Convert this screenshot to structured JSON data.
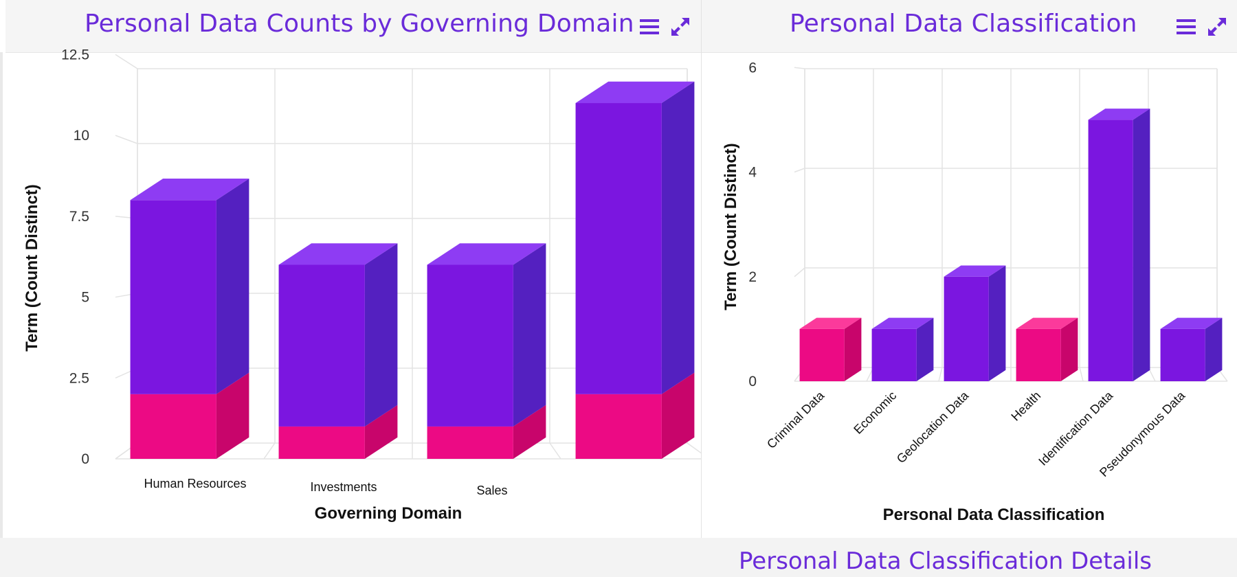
{
  "colors": {
    "accent": "#6a2bd9",
    "pink_front": "#ec0a84",
    "pink_side": "#c8056b",
    "pink_top": "#fb3a9b",
    "purple_front": "#7b16e0",
    "purple_side": "#5420c0",
    "purple_top": "#8e3cf3"
  },
  "icons": {
    "menu": "hamburger-menu-icon",
    "expand": "expand-arrows-icon"
  },
  "left_panel": {
    "title": "Personal Data Counts by Governing Domain"
  },
  "right_panel": {
    "title": "Personal Data Classification"
  },
  "bottom_panel": {
    "title": "Personal Data Classification Details"
  },
  "chart_data": [
    {
      "type": "bar",
      "stacked": true,
      "three_d": true,
      "title": "Personal Data Counts by Governing Domain",
      "xlabel": "Governing Domain",
      "ylabel": "Term (Count Distinct)",
      "categories": [
        "Human Resources",
        "Investments",
        "Sales",
        ""
      ],
      "series": [
        {
          "color": "#ec0a84",
          "values": [
            2,
            1,
            1,
            2
          ]
        },
        {
          "color": "#7b16e0",
          "values": [
            6,
            5,
            5,
            9
          ]
        }
      ],
      "ylim": [
        0,
        12.5
      ],
      "yticks": [
        "0",
        "2.5",
        "5",
        "7.5",
        "10",
        "12.5"
      ],
      "grid": true,
      "legend": "none"
    },
    {
      "type": "bar",
      "three_d": true,
      "title": "Personal Data Classification",
      "xlabel": "Personal Data Classification",
      "ylabel": "Term (Count Distinct)",
      "categories": [
        "Criminal Data",
        "Economic",
        "Geolocation Data",
        "Health",
        "Identification Data",
        "Pseudonymous Data"
      ],
      "values": [
        1,
        1,
        2,
        1,
        5,
        1
      ],
      "bar_colors": [
        "#ec0a84",
        "#7b16e0",
        "#7b16e0",
        "#ec0a84",
        "#7b16e0",
        "#7b16e0"
      ],
      "ylim": [
        0,
        6
      ],
      "yticks": [
        "0",
        "2",
        "4",
        "6"
      ],
      "grid": true,
      "legend": "none"
    }
  ]
}
